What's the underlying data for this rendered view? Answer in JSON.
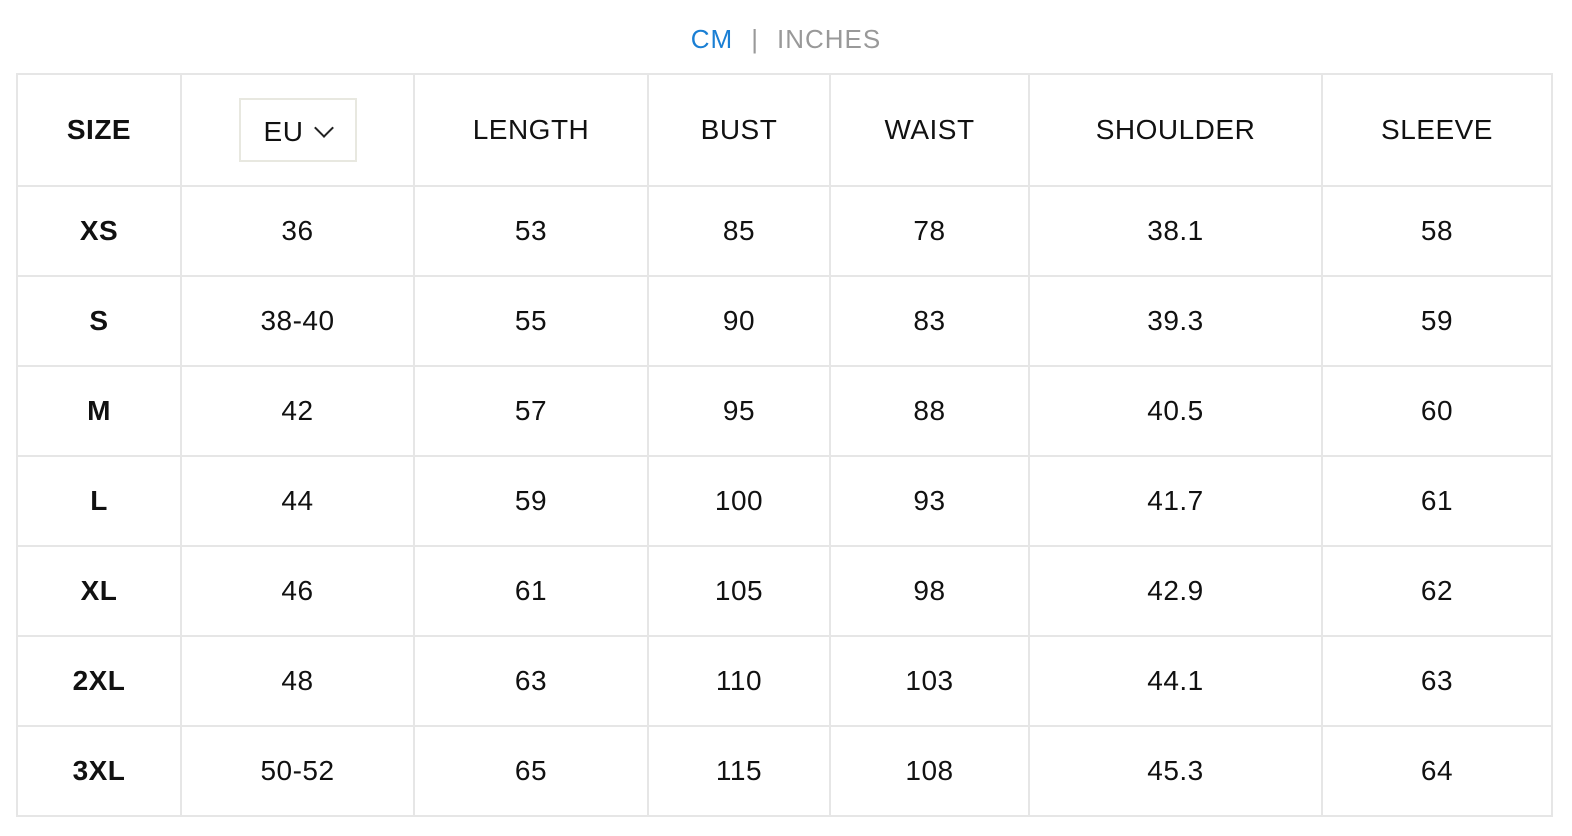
{
  "units": {
    "active": "CM",
    "separator": "|",
    "inactive": "INCHES",
    "active_color": "#1a7fd4"
  },
  "headers": {
    "size": "SIZE",
    "region_select": "EU",
    "length": "LENGTH",
    "bust": "BUST",
    "waist": "WAIST",
    "shoulder": "SHOULDER",
    "sleeve": "SLEEVE"
  },
  "rows": [
    [
      "XS",
      "36",
      "53",
      "85",
      "78",
      "38.1",
      "58"
    ],
    [
      "S",
      "38-40",
      "55",
      "90",
      "83",
      "39.3",
      "59"
    ],
    [
      "M",
      "42",
      "57",
      "95",
      "88",
      "40.5",
      "60"
    ],
    [
      "L",
      "44",
      "59",
      "100",
      "93",
      "41.7",
      "61"
    ],
    [
      "XL",
      "46",
      "61",
      "105",
      "98",
      "42.9",
      "62"
    ],
    [
      "2XL",
      "48",
      "63",
      "110",
      "103",
      "44.1",
      "63"
    ],
    [
      "3XL",
      "50-52",
      "65",
      "115",
      "108",
      "45.3",
      "64"
    ]
  ]
}
